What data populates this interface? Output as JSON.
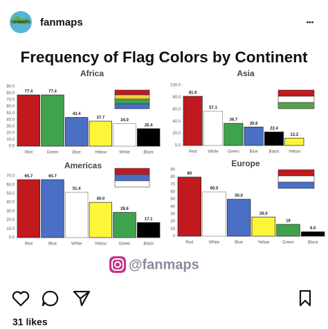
{
  "post": {
    "username": "fanmaps",
    "menu": "•••",
    "avatar_text": "FANMAPS",
    "image_title": "Frequency of Flag Colors by Continent",
    "watermark": "@fanmaps",
    "likes": "31 likes"
  },
  "chart_data": [
    {
      "type": "bar",
      "title": "Africa",
      "categories": [
        "Red",
        "Green",
        "Blue",
        "Yellow",
        "White",
        "Black"
      ],
      "values": [
        77.4,
        77.4,
        43.4,
        37.7,
        34.0,
        26.4
      ],
      "value_labels": [
        "77.4",
        "77.4",
        "43.4",
        "37.7",
        "34.0",
        "26.4"
      ],
      "colors": [
        "#c0191e",
        "#3fa34d",
        "#4a6fc4",
        "#fdf53a",
        "#ffffff",
        "#000000"
      ],
      "ylim": [
        0,
        90
      ],
      "yticks": [
        {
          "value": 0,
          "label": "0.0"
        },
        {
          "value": 10,
          "label": "10.0"
        },
        {
          "value": 20,
          "label": "20.0"
        },
        {
          "value": 30,
          "label": "30.0"
        },
        {
          "value": 40,
          "label": "40.0"
        },
        {
          "value": 50,
          "label": "50.0"
        },
        {
          "value": 60,
          "label": "60.0"
        },
        {
          "value": 70,
          "label": "70.0"
        },
        {
          "value": 80,
          "label": "80.0"
        },
        {
          "value": 90,
          "label": "90.0"
        }
      ]
    },
    {
      "type": "bar",
      "title": "Asia",
      "categories": [
        "Red",
        "White",
        "Green",
        "Blue",
        "Black",
        "Yellow"
      ],
      "values": [
        81.6,
        57.1,
        36.7,
        30.6,
        22.4,
        12.2
      ],
      "value_labels": [
        "81.6",
        "57.1",
        "36.7",
        "30.6",
        "22.4",
        "12.2"
      ],
      "colors": [
        "#c0191e",
        "#ffffff",
        "#3fa34d",
        "#4a6fc4",
        "#000000",
        "#fdf53a"
      ],
      "ylim": [
        0,
        100
      ],
      "yticks": [
        {
          "value": 0,
          "label": "0.0"
        },
        {
          "value": 20,
          "label": "20.0"
        },
        {
          "value": 40,
          "label": "40.0"
        },
        {
          "value": 60,
          "label": "60.0"
        },
        {
          "value": 80,
          "label": "80.0"
        },
        {
          "value": 100,
          "label": "100.0"
        }
      ]
    },
    {
      "type": "bar",
      "title": "Americas",
      "categories": [
        "Red",
        "Blue",
        "White",
        "Yellow",
        "Green",
        "Black"
      ],
      "values": [
        65.7,
        65.7,
        51.4,
        40.0,
        28.6,
        17.1
      ],
      "value_labels": [
        "65.7",
        "65.7",
        "51.4",
        "40.0",
        "28.6",
        "17.1"
      ],
      "colors": [
        "#c0191e",
        "#4a6fc4",
        "#ffffff",
        "#fdf53a",
        "#3fa34d",
        "#000000"
      ],
      "ylim": [
        0,
        70
      ],
      "yticks": [
        {
          "value": 0,
          "label": "0.0"
        },
        {
          "value": 10,
          "label": "10.0"
        },
        {
          "value": 20,
          "label": "20.0"
        },
        {
          "value": 30,
          "label": "30.0"
        },
        {
          "value": 40,
          "label": "40.0"
        },
        {
          "value": 50,
          "label": "50.0"
        },
        {
          "value": 60,
          "label": "60.0"
        },
        {
          "value": 70,
          "label": "70.0"
        }
      ]
    },
    {
      "type": "bar",
      "title": "Europe",
      "categories": [
        "Red",
        "White",
        "Blue",
        "Yellow",
        "Green",
        "Black"
      ],
      "values": [
        80,
        60.0,
        50.0,
        26.0,
        16,
        6.0
      ],
      "value_labels": [
        "80",
        "60.0",
        "50.0",
        "26.0",
        "16",
        "6.0"
      ],
      "colors": [
        "#c0191e",
        "#ffffff",
        "#4a6fc4",
        "#fdf53a",
        "#3fa34d",
        "#000000"
      ],
      "ylim": [
        0,
        90
      ],
      "yticks": [
        0,
        10,
        20,
        30,
        40,
        50,
        60,
        70,
        80,
        90
      ]
    }
  ]
}
